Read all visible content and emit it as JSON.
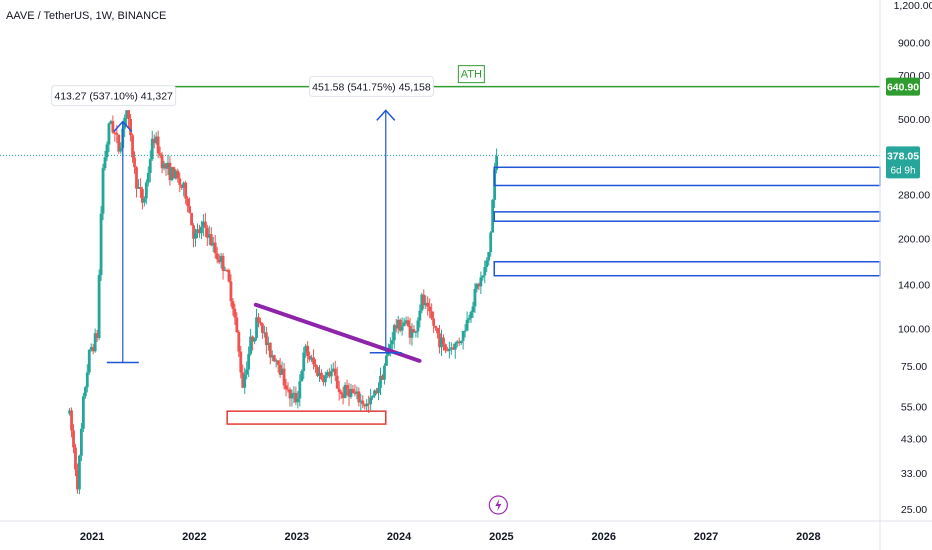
{
  "header": {
    "title": "AAVE / TetherUS, 1W, BINANCE"
  },
  "colors": {
    "up": "#26a69a",
    "down": "#ef5350",
    "ath_line": "#2e9c2e",
    "measure": "#1e56d6",
    "zones": "#1e56d6",
    "trendline": "#8e24aa",
    "support_box": "#e53935",
    "price_badge": "#26a69a"
  },
  "chart_data": {
    "type": "candlestick",
    "scale": "log",
    "ylim": [
      25,
      1200
    ],
    "y_ticks": [
      "1,200.00",
      "900.00",
      "700.00",
      "500.00",
      "280.00",
      "200.00",
      "140.00",
      "100.00",
      "75.00",
      "55.00",
      "43.00",
      "33.00",
      "25.00"
    ],
    "y_tick_values": [
      1200,
      900,
      700,
      500,
      280,
      200,
      140,
      100,
      75,
      55,
      43,
      33,
      25
    ],
    "x_ticks": [
      "2021",
      "2022",
      "2023",
      "2024",
      "2025",
      "2026",
      "2027",
      "2028"
    ],
    "x_tick_values": [
      2021,
      2022,
      2023,
      2024,
      2025,
      2026,
      2027,
      2028
    ],
    "xlim": [
      2020.1,
      2028.7
    ],
    "price_path": [
      [
        2020.78,
        52
      ],
      [
        2020.86,
        30
      ],
      [
        2020.92,
        60
      ],
      [
        2020.98,
        85
      ],
      [
        2021.05,
        95
      ],
      [
        2021.1,
        330
      ],
      [
        2021.18,
        500
      ],
      [
        2021.27,
        390
      ],
      [
        2021.33,
        560
      ],
      [
        2021.43,
        310
      ],
      [
        2021.5,
        260
      ],
      [
        2021.6,
        440
      ],
      [
        2021.7,
        350
      ],
      [
        2021.82,
        320
      ],
      [
        2021.92,
        280
      ],
      [
        2022.0,
        200
      ],
      [
        2022.1,
        220
      ],
      [
        2022.2,
        180
      ],
      [
        2022.3,
        160
      ],
      [
        2022.38,
        120
      ],
      [
        2022.47,
        65
      ],
      [
        2022.55,
        90
      ],
      [
        2022.63,
        110
      ],
      [
        2022.72,
        85
      ],
      [
        2022.82,
        78
      ],
      [
        2022.92,
        60
      ],
      [
        2023.0,
        58
      ],
      [
        2023.08,
        85
      ],
      [
        2023.17,
        75
      ],
      [
        2023.25,
        68
      ],
      [
        2023.35,
        72
      ],
      [
        2023.43,
        60
      ],
      [
        2023.5,
        63
      ],
      [
        2023.6,
        58
      ],
      [
        2023.7,
        55
      ],
      [
        2023.8,
        65
      ],
      [
        2023.88,
        80
      ],
      [
        2023.95,
        100
      ],
      [
        2024.05,
        105
      ],
      [
        2024.15,
        95
      ],
      [
        2024.22,
        125
      ],
      [
        2024.3,
        110
      ],
      [
        2024.38,
        95
      ],
      [
        2024.45,
        85
      ],
      [
        2024.55,
        88
      ],
      [
        2024.62,
        95
      ],
      [
        2024.68,
        110
      ],
      [
        2024.75,
        135
      ],
      [
        2024.82,
        150
      ],
      [
        2024.87,
        170
      ],
      [
        2024.9,
        220
      ],
      [
        2024.93,
        330
      ],
      [
        2024.96,
        378.05
      ]
    ],
    "annotations": {
      "ath_label": "ATH",
      "ath_price": 640.9,
      "ath_price_label": "640.90",
      "current_price": 378.05,
      "current_price_label": "378.05",
      "countdown_label": "6d 9h",
      "measure_1": {
        "label": "413.27 (537.10%) 41,327",
        "x": 2021.3,
        "from": 77,
        "to": 490
      },
      "measure_2": {
        "label": "451.58 (541.75%) 45,158",
        "x": 2023.87,
        "from": 83,
        "to": 534
      },
      "trendline": {
        "from": [
          2022.6,
          120
        ],
        "to": [
          2024.2,
          78
        ]
      },
      "support_box": {
        "from": [
          2022.32,
          48
        ],
        "to": [
          2023.87,
          53
        ]
      },
      "resistance_zones": [
        [
          300,
          345
        ],
        [
          228,
          245
        ],
        [
          150,
          167
        ]
      ]
    }
  }
}
